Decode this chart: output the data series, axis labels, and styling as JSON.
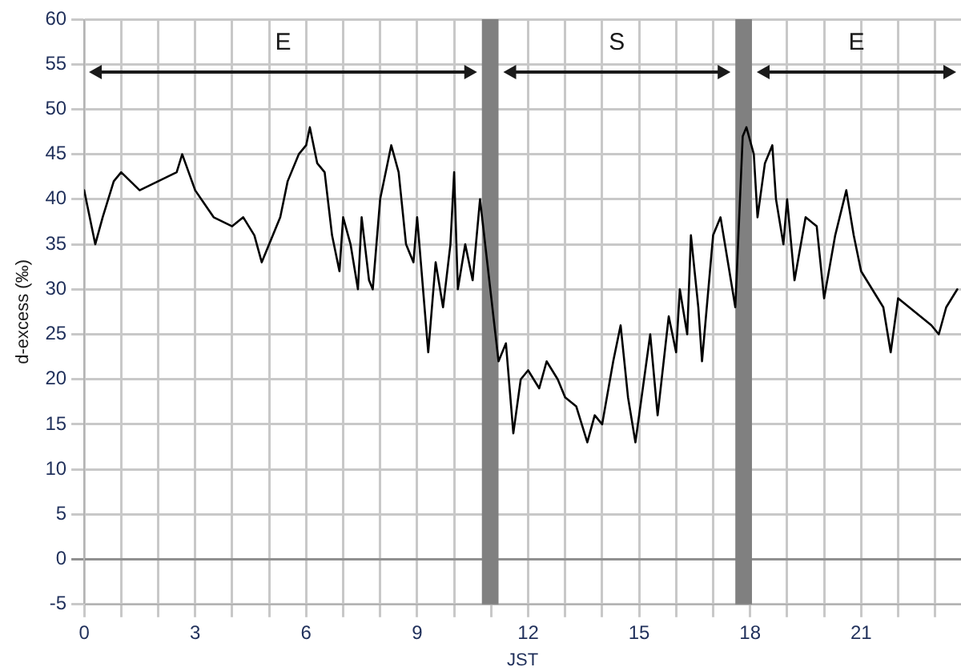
{
  "chart_data": {
    "type": "line",
    "xlabel": "JST",
    "ylabel": "d-excess (‰)",
    "x": [
      0,
      0.3,
      0.5,
      0.8,
      1,
      1.5,
      2,
      2.5,
      2.65,
      3,
      3.5,
      4,
      4.3,
      4.6,
      4.8,
      5,
      5.3,
      5.5,
      5.8,
      6,
      6.1,
      6.3,
      6.5,
      6.7,
      6.9,
      7,
      7.2,
      7.4,
      7.5,
      7.7,
      7.8,
      8,
      8.2,
      8.3,
      8.5,
      8.7,
      8.9,
      9,
      9.2,
      9.3,
      9.5,
      9.7,
      9.9,
      10,
      10.1,
      10.3,
      10.5,
      10.7,
      11.2,
      11.4,
      11.6,
      11.8,
      12,
      12.3,
      12.5,
      12.8,
      13,
      13.3,
      13.6,
      13.8,
      14,
      14.3,
      14.5,
      14.7,
      14.9,
      15.2,
      15.3,
      15.5,
      15.8,
      16,
      16.1,
      16.3,
      16.4,
      16.6,
      16.7,
      17,
      17.2,
      17.4,
      17.6,
      17.8,
      17.9,
      18.1,
      18.2,
      18.4,
      18.6,
      18.7,
      18.9,
      19,
      19.2,
      19.5,
      19.8,
      20,
      20.3,
      20.6,
      20.8,
      21,
      21.3,
      21.6,
      21.8,
      22,
      22.3,
      22.6,
      22.9,
      23.1,
      23.3,
      23.6
    ],
    "series": [
      {
        "color": "#000000",
        "values": [
          41,
          35,
          38,
          42,
          43,
          41,
          42,
          43,
          45,
          41,
          38,
          37,
          38,
          36,
          33,
          35,
          38,
          42,
          45,
          46,
          48,
          44,
          43,
          36,
          32,
          38,
          35,
          30,
          38,
          31,
          30,
          40,
          44,
          46,
          43,
          35,
          33,
          38,
          28,
          23,
          33,
          28,
          35,
          43,
          30,
          35,
          31,
          40,
          22,
          24,
          14,
          20,
          21,
          19,
          22,
          20,
          18,
          17,
          13,
          16,
          15,
          22,
          26,
          18,
          13,
          22,
          25,
          16,
          27,
          23,
          30,
          25,
          36,
          28,
          22,
          36,
          38,
          33,
          28,
          47,
          48,
          45,
          38,
          44,
          46,
          40,
          35,
          40,
          31,
          38,
          37,
          29,
          36,
          41,
          36,
          32,
          30,
          28,
          23,
          29,
          28,
          27,
          26,
          25,
          28,
          30
        ]
      }
    ],
    "xlim": [
      0,
      23.7
    ],
    "xticks": [
      0,
      {
        "value": 1,
        "label": null
      },
      {
        "value": 2,
        "label": null
      },
      3,
      {
        "value": 4,
        "label": null
      },
      {
        "value": 5,
        "label": null
      },
      6,
      {
        "value": 7,
        "label": null
      },
      {
        "value": 8,
        "label": null
      },
      9,
      {
        "value": 10,
        "label": null
      },
      {
        "value": 11,
        "label": null
      },
      12,
      {
        "value": 13,
        "label": null
      },
      {
        "value": 14,
        "label": null
      },
      15,
      {
        "value": 16,
        "label": null
      },
      {
        "value": 17,
        "label": null
      },
      18,
      {
        "value": 19,
        "label": null
      },
      {
        "value": 20,
        "label": null
      },
      21,
      {
        "value": 22,
        "label": null
      },
      {
        "value": 23,
        "label": null
      }
    ],
    "ylim": [
      -5,
      60
    ],
    "yticks": [
      -5,
      0,
      5,
      10,
      15,
      20,
      25,
      30,
      35,
      40,
      45,
      50,
      55,
      60
    ],
    "bands": [
      {
        "axis": "x",
        "from": 10.75,
        "to": 11.2,
        "color": "#808080"
      },
      {
        "axis": "x",
        "from": 17.6,
        "to": 18.05,
        "color": "#808080"
      }
    ],
    "annotations": [
      "E",
      "S",
      "E"
    ],
    "grid": true,
    "legend": false,
    "marker": "none",
    "line_style": "solid"
  }
}
